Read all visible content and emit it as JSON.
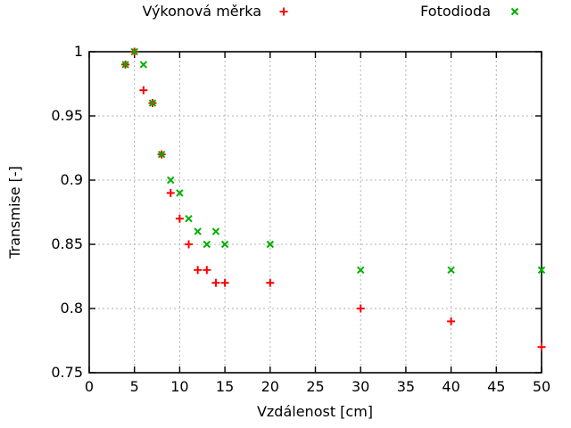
{
  "colors": {
    "background": "#ffffff",
    "border": "#000000",
    "grid": "#b0b0b0",
    "series_red": "#ff0000",
    "series_green": "#00b000",
    "text": "#000000"
  },
  "chart_data": {
    "type": "scatter",
    "title": "",
    "xlabel": "Vzdálenost [cm]",
    "ylabel": "Transmise [-]",
    "xlim": [
      0,
      50
    ],
    "ylim": [
      0.75,
      1.0
    ],
    "grid": true,
    "legend_position": "top",
    "xticks": {
      "values": [
        0,
        5,
        10,
        15,
        20,
        25,
        30,
        35,
        40,
        45,
        50
      ],
      "labels": [
        "0",
        "5",
        "10",
        "15",
        "20",
        "25",
        "30",
        "35",
        "40",
        "45",
        "50"
      ]
    },
    "yticks": {
      "values": [
        0.75,
        0.8,
        0.85,
        0.9,
        0.95,
        1.0
      ],
      "labels": [
        "0.75",
        "0.8",
        "0.85",
        "0.9",
        "0.95",
        "1"
      ]
    },
    "series": [
      {
        "name": "Výkonová měrka",
        "marker": "plus",
        "color": "#ff0000",
        "points": [
          [
            4,
            0.99
          ],
          [
            5,
            1.0
          ],
          [
            6,
            0.97
          ],
          [
            7,
            0.96
          ],
          [
            8,
            0.92
          ],
          [
            9,
            0.89
          ],
          [
            10,
            0.87
          ],
          [
            11,
            0.85
          ],
          [
            12,
            0.83
          ],
          [
            13,
            0.83
          ],
          [
            14,
            0.82
          ],
          [
            15,
            0.82
          ],
          [
            20,
            0.82
          ],
          [
            30,
            0.8
          ],
          [
            40,
            0.79
          ],
          [
            50,
            0.77
          ]
        ]
      },
      {
        "name": "Fotodioda",
        "marker": "cross",
        "color": "#00b000",
        "points": [
          [
            4,
            0.99
          ],
          [
            5,
            1.0
          ],
          [
            6,
            0.99
          ],
          [
            7,
            0.96
          ],
          [
            8,
            0.92
          ],
          [
            9,
            0.9
          ],
          [
            10,
            0.89
          ],
          [
            11,
            0.87
          ],
          [
            12,
            0.86
          ],
          [
            13,
            0.85
          ],
          [
            14,
            0.86
          ],
          [
            15,
            0.85
          ],
          [
            20,
            0.85
          ],
          [
            30,
            0.83
          ],
          [
            40,
            0.83
          ],
          [
            50,
            0.83
          ]
        ]
      }
    ]
  }
}
